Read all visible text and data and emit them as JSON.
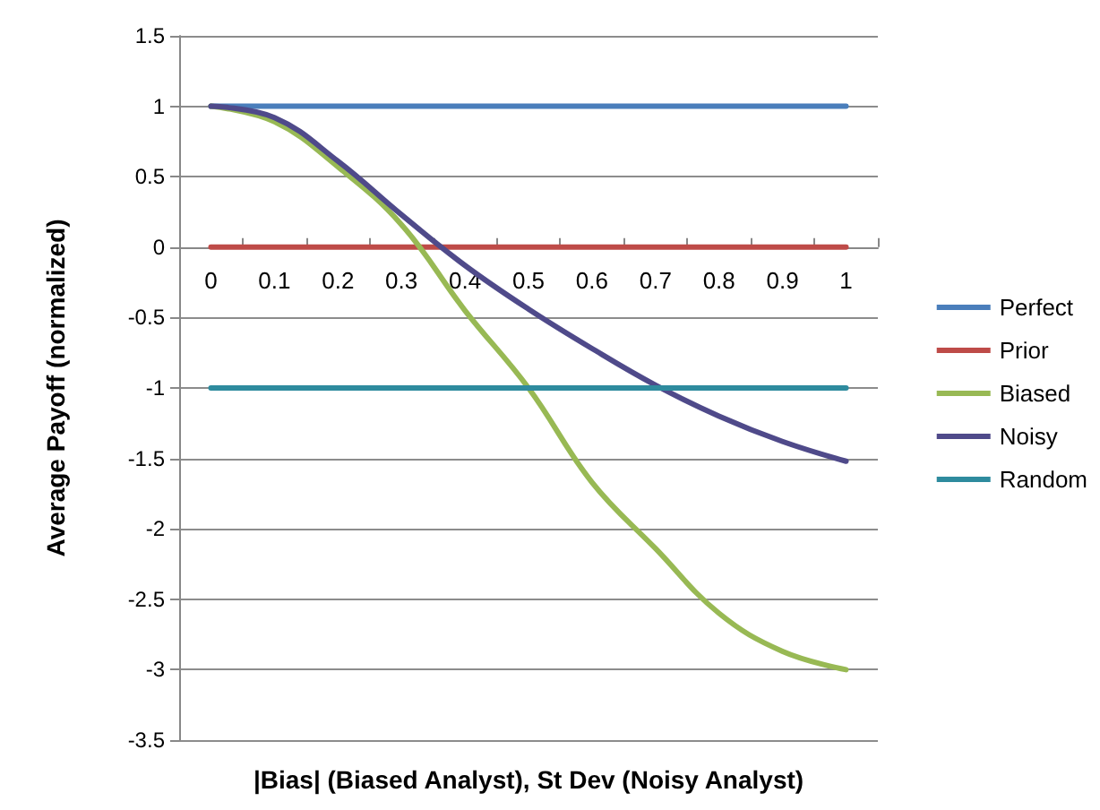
{
  "chart_data": {
    "type": "line",
    "xlabel": "|Bias| (Biased Analyst), St Dev (Noisy Analyst)",
    "ylabel": "Average Payoff (normalized)",
    "categories": [
      "0",
      "0.1",
      "0.2",
      "0.3",
      "0.4",
      "0.5",
      "0.6",
      "0.7",
      "0.8",
      "0.9",
      "1"
    ],
    "series": [
      {
        "name": "Perfect",
        "color": "#4a7ebb",
        "values": [
          1,
          1,
          1,
          1,
          1,
          1,
          1,
          1,
          1,
          1,
          1
        ]
      },
      {
        "name": "Prior",
        "color": "#be4b48",
        "values": [
          0,
          0,
          0,
          0,
          0,
          0,
          0,
          0,
          0,
          0,
          0
        ]
      },
      {
        "name": "Biased",
        "color": "#98b954",
        "values": [
          1,
          0.89,
          0.57,
          0.16,
          -0.45,
          -1.0,
          -1.67,
          -2.14,
          -2.6,
          -2.87,
          -3.0
        ]
      },
      {
        "name": "Noisy",
        "color": "#4f4a8a",
        "values": [
          1,
          0.92,
          0.61,
          0.23,
          -0.13,
          -0.44,
          -0.72,
          -0.98,
          -1.2,
          -1.38,
          -1.52
        ]
      },
      {
        "name": "Random",
        "color": "#2e8b9e",
        "values": [
          -1,
          -1,
          -1,
          -1,
          -1,
          -1,
          -1,
          -1,
          -1,
          -1,
          -1
        ]
      }
    ],
    "ylim": [
      -3.5,
      1.5
    ],
    "yticks": [
      -3.5,
      -3,
      -2.5,
      -2,
      -1.5,
      -1,
      -0.5,
      0,
      0.5,
      1,
      1.5
    ],
    "grid": "y",
    "legend": "right",
    "marker": "none",
    "line_style": "solid"
  }
}
